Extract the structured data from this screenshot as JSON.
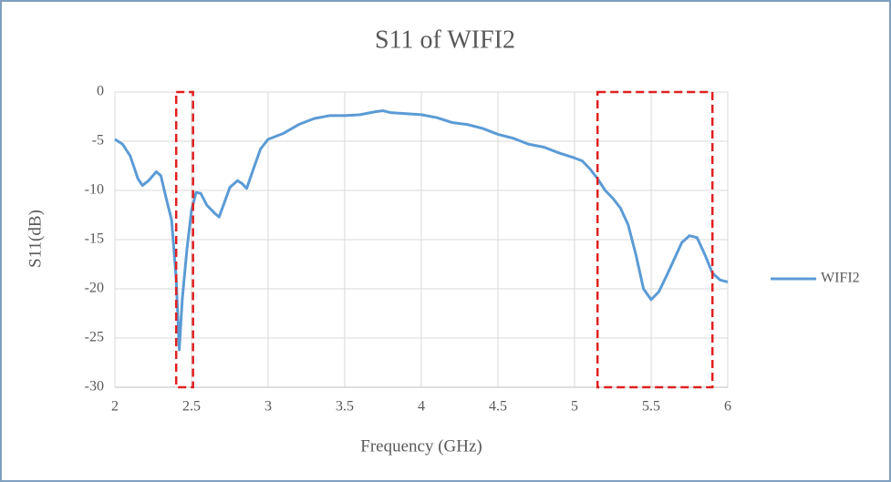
{
  "chart_data": {
    "type": "line",
    "title": "S11 of WIFI2",
    "x_label": "Frequency (GHz)",
    "y_label": "S11(dB)",
    "xlim": [
      2,
      6
    ],
    "xticks": [
      2,
      2.5,
      3,
      3.5,
      4,
      4.5,
      5,
      5.5,
      6
    ],
    "ylim": [
      -30,
      0
    ],
    "yticks": [
      0,
      -5,
      -10,
      -15,
      -20,
      -25,
      -30
    ],
    "grid": true,
    "legend": "right",
    "x": [
      2.0,
      2.05,
      2.1,
      2.15,
      2.18,
      2.22,
      2.27,
      2.3,
      2.33,
      2.37,
      2.4,
      2.42,
      2.44,
      2.47,
      2.5,
      2.53,
      2.56,
      2.6,
      2.65,
      2.68,
      2.72,
      2.75,
      2.8,
      2.83,
      2.86,
      2.9,
      2.95,
      3.0,
      3.1,
      3.2,
      3.3,
      3.4,
      3.5,
      3.6,
      3.7,
      3.75,
      3.8,
      3.9,
      4.0,
      4.1,
      4.2,
      4.3,
      4.4,
      4.5,
      4.6,
      4.7,
      4.8,
      4.9,
      5.0,
      5.05,
      5.1,
      5.15,
      5.2,
      5.25,
      5.3,
      5.35,
      5.4,
      5.45,
      5.5,
      5.55,
      5.6,
      5.65,
      5.7,
      5.75,
      5.8,
      5.85,
      5.9,
      5.95,
      6.0
    ],
    "series": [
      {
        "name": "WIFI2",
        "color": "#5b9bd5",
        "values": [
          -4.8,
          -5.3,
          -6.5,
          -8.8,
          -9.5,
          -9.0,
          -8.1,
          -8.5,
          -10.5,
          -13,
          -19,
          -26.2,
          -21,
          -16,
          -12,
          -10.2,
          -10.3,
          -11.5,
          -12.3,
          -12.7,
          -11,
          -9.7,
          -9.0,
          -9.3,
          -9.8,
          -8,
          -5.8,
          -4.8,
          -4.2,
          -3.3,
          -2.7,
          -2.4,
          -2.4,
          -2.3,
          -2.0,
          -1.9,
          -2.1,
          -2.2,
          -2.3,
          -2.6,
          -3.1,
          -3.3,
          -3.7,
          -4.3,
          -4.7,
          -5.3,
          -5.6,
          -6.2,
          -6.7,
          -7.0,
          -7.8,
          -8.8,
          -10,
          -10.8,
          -11.8,
          -13.5,
          -16.5,
          -20.0,
          -21.1,
          -20.3,
          -18.7,
          -17,
          -15.3,
          -14.6,
          -14.8,
          -16.5,
          -18.4,
          -19.1,
          -19.3
        ]
      }
    ],
    "highlights": [
      {
        "x": [
          2.4,
          2.51
        ],
        "color": "#e02020"
      },
      {
        "x": [
          5.15,
          5.9
        ],
        "color": "#e02020"
      }
    ]
  }
}
